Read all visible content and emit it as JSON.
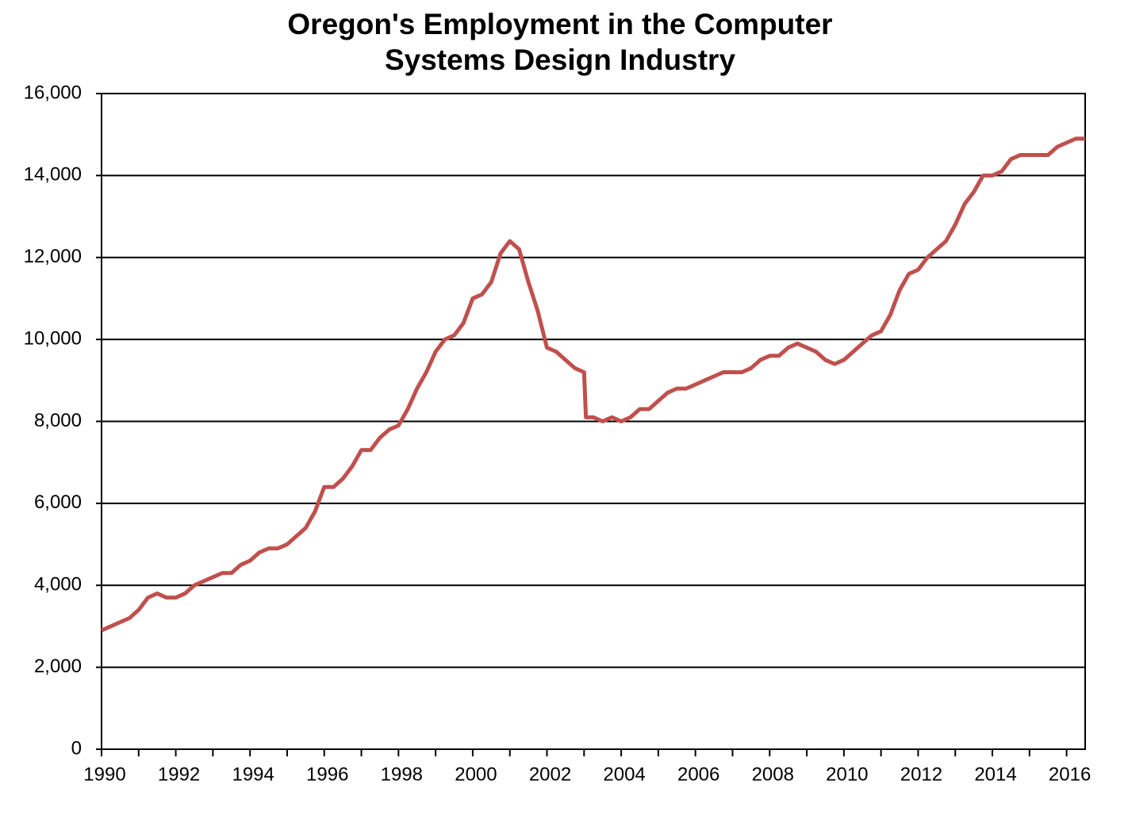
{
  "chart_data": {
    "type": "line",
    "title": "Oregon's Employment in the Computer Systems Design Industry",
    "x": [
      1990,
      1990.25,
      1990.5,
      1990.75,
      1991,
      1991.25,
      1991.5,
      1991.75,
      1992,
      1992.25,
      1992.5,
      1992.75,
      1993,
      1993.25,
      1993.5,
      1993.75,
      1994,
      1994.25,
      1994.5,
      1994.75,
      1995,
      1995.25,
      1995.5,
      1995.75,
      1996,
      1996.25,
      1996.5,
      1996.75,
      1997,
      1997.25,
      1997.5,
      1997.75,
      1998,
      1998.25,
      1998.5,
      1998.75,
      1999,
      1999.25,
      1999.5,
      1999.75,
      2000,
      2000.25,
      2000.5,
      2000.75,
      2001,
      2001.25,
      2001.5,
      2001.75,
      2002,
      2002.25,
      2002.5,
      2002.75,
      2003,
      2003.05,
      2003.25,
      2003.5,
      2003.75,
      2004,
      2004.25,
      2004.5,
      2004.75,
      2005,
      2005.25,
      2005.5,
      2005.75,
      2006,
      2006.25,
      2006.5,
      2006.75,
      2007,
      2007.25,
      2007.5,
      2007.75,
      2008,
      2008.25,
      2008.5,
      2008.75,
      2009,
      2009.25,
      2009.5,
      2009.75,
      2010,
      2010.25,
      2010.5,
      2010.75,
      2011,
      2011.25,
      2011.5,
      2011.75,
      2012,
      2012.25,
      2012.5,
      2012.75,
      2013,
      2013.25,
      2013.5,
      2013.75,
      2014,
      2014.25,
      2014.5,
      2014.75,
      2015,
      2015.25,
      2015.5,
      2015.75,
      2016,
      2016.25,
      2016.5
    ],
    "series": [
      {
        "color": "#c0504d",
        "values": [
          2900,
          3000,
          3100,
          3200,
          3400,
          3700,
          3800,
          3700,
          3700,
          3800,
          4000,
          4100,
          4200,
          4300,
          4300,
          4500,
          4600,
          4800,
          4900,
          4900,
          5000,
          5200,
          5400,
          5800,
          6400,
          6400,
          6600,
          6900,
          7300,
          7300,
          7600,
          7800,
          7900,
          8300,
          8800,
          9200,
          9700,
          10000,
          10100,
          10400,
          11000,
          11100,
          11400,
          12100,
          12400,
          12200,
          11400,
          10700,
          9800,
          9700,
          9500,
          9300,
          9200,
          8100,
          8100,
          8000,
          8100,
          8000,
          8100,
          8300,
          8300,
          8500,
          8700,
          8800,
          8800,
          8900,
          9000,
          9100,
          9200,
          9200,
          9200,
          9300,
          9500,
          9600,
          9600,
          9800,
          9900,
          9800,
          9700,
          9500,
          9400,
          9500,
          9700,
          9900,
          10100,
          10200,
          10600,
          11200,
          11600,
          11700,
          12000,
          12200,
          12400,
          12800,
          13300,
          13600,
          14000,
          14000,
          14100,
          14400,
          14500,
          14500,
          14500,
          14500,
          14700,
          14800,
          14900,
          14900
        ]
      }
    ],
    "xlim": [
      1990,
      2016.5
    ],
    "xticks": [
      1990,
      1992,
      1994,
      1996,
      1998,
      2000,
      2002,
      2004,
      2006,
      2008,
      2010,
      2012,
      2014,
      2016
    ],
    "xminorticks": [
      1991,
      1993,
      1995,
      1997,
      1999,
      2001,
      2003,
      2005,
      2007,
      2009,
      2011,
      2013,
      2015
    ],
    "ylim": [
      0,
      16000
    ],
    "yticks": [
      0,
      {
        "value": 2000,
        "label": "2,000"
      },
      {
        "value": 4000,
        "label": "4,000"
      },
      {
        "value": 6000,
        "label": "6,000"
      },
      {
        "value": 8000,
        "label": "8,000"
      },
      {
        "value": 10000,
        "label": "10,000"
      },
      {
        "value": 12000,
        "label": "12,000"
      },
      {
        "value": 14000,
        "label": "14,000"
      },
      {
        "value": 16000,
        "label": "16,000"
      }
    ],
    "grid": true
  }
}
